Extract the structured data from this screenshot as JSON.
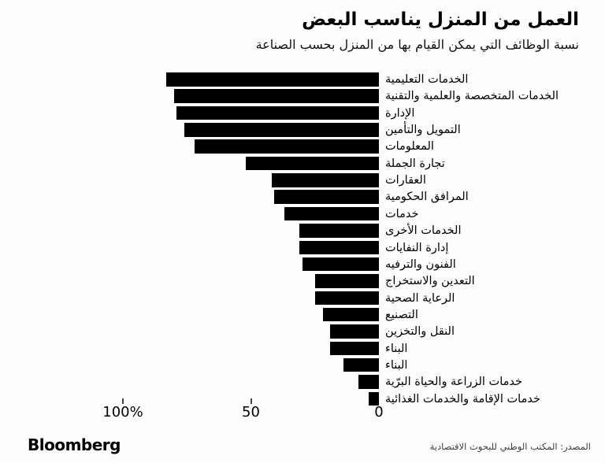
{
  "header": {
    "title": "العمل من المنزل يناسب البعض",
    "subtitle": "نسبة الوظائف التي يمكن القيام بها من المنزل بحسب الصناعة"
  },
  "chart_data": {
    "type": "bar",
    "orientation": "horizontal",
    "direction": "rtl",
    "title": "العمل من المنزل يناسب البعض",
    "subtitle": "نسبة الوظائف التي يمكن القيام بها من المنزل بحسب الصناعة",
    "categories": [
      "الخدمات التعليمية",
      "الخدمات المتخصصة والعلمية والتقنية",
      "الإدارة",
      "التمويل والتأمين",
      "المعلومات",
      "تجارة الجملة",
      "العقارات",
      "المرافق الحكومية",
      "خدمات",
      "الخدمات الأخرى",
      "إدارة النفايات",
      "الفنون والترفيه",
      "التعدين والاستخراج",
      "الرعاية الصحية",
      "التصنيع",
      "النقل والتخزين",
      "البناء",
      "البناء",
      "خدمات الزراعة والحياة البرّية",
      "خدمات الإقامة والخدمات الغذائية"
    ],
    "values": [
      83,
      80,
      79,
      76,
      72,
      52,
      42,
      41,
      37,
      31,
      31,
      30,
      25,
      25,
      22,
      19,
      19,
      14,
      8,
      4
    ],
    "xlim": [
      0,
      100
    ],
    "x_ticks": [
      {
        "value": 100,
        "label": "100%",
        "tick_mark": true
      },
      {
        "value": 50,
        "label": "50",
        "tick_mark": true
      },
      {
        "value": 0,
        "label": "0",
        "tick_mark": false
      }
    ],
    "bar_color": "#000000",
    "grid": false,
    "legend": "none"
  },
  "footer": {
    "brand": "Bloomberg",
    "source": "المصدر: المكتب الوطني للبحوث الاقتصادية"
  }
}
